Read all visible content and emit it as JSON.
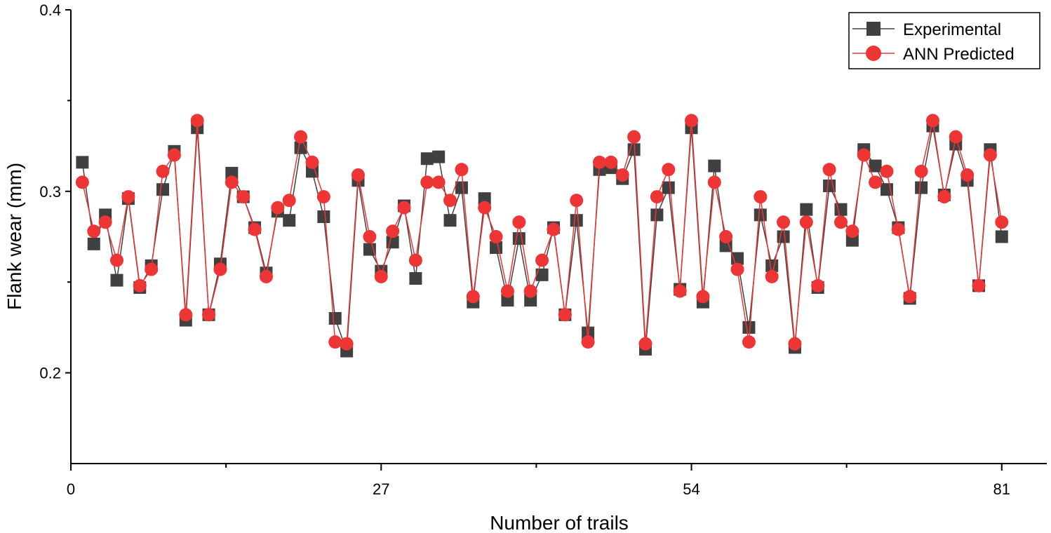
{
  "chart_data": {
    "type": "line",
    "xlabel": "Number of trails",
    "ylabel": "Flank wear (mm)",
    "xlim": [
      0,
      83
    ],
    "ylim": [
      0.15,
      0.4
    ],
    "x_ticks": [
      "0",
      "27",
      "54",
      "81"
    ],
    "y_ticks": [
      "0.2",
      "0.3",
      "0.4"
    ],
    "legend_position": "top-right",
    "x": [
      1,
      2,
      3,
      4,
      5,
      6,
      7,
      8,
      9,
      10,
      11,
      12,
      13,
      14,
      15,
      16,
      17,
      18,
      19,
      20,
      21,
      22,
      23,
      24,
      25,
      26,
      27,
      28,
      29,
      30,
      31,
      32,
      33,
      34,
      35,
      36,
      37,
      38,
      39,
      40,
      41,
      42,
      43,
      44,
      45,
      46,
      47,
      48,
      49,
      50,
      51,
      52,
      53,
      54,
      55,
      56,
      57,
      58,
      59,
      60,
      61,
      62,
      63,
      64,
      65,
      66,
      67,
      68,
      69,
      70,
      71,
      72,
      73,
      74,
      75,
      76,
      77,
      78,
      79,
      80,
      81
    ],
    "series": [
      {
        "name": "Experimental",
        "color": "#404040",
        "marker": "square",
        "values": [
          0.316,
          0.271,
          0.287,
          0.251,
          0.296,
          0.247,
          0.259,
          0.301,
          0.322,
          0.229,
          0.335,
          0.232,
          0.26,
          0.31,
          0.297,
          0.28,
          0.255,
          0.289,
          0.284,
          0.324,
          0.311,
          0.286,
          0.23,
          0.212,
          0.306,
          0.268,
          0.256,
          0.272,
          0.292,
          0.252,
          0.318,
          0.319,
          0.284,
          0.302,
          0.239,
          0.296,
          0.269,
          0.24,
          0.274,
          0.24,
          0.254,
          0.28,
          0.232,
          0.284,
          0.222,
          0.312,
          0.313,
          0.307,
          0.323,
          0.213,
          0.287,
          0.302,
          0.246,
          0.335,
          0.239,
          0.314,
          0.27,
          0.263,
          0.225,
          0.287,
          0.259,
          0.275,
          0.214,
          0.29,
          0.247,
          0.303,
          0.29,
          0.273,
          0.323,
          0.314,
          0.301,
          0.28,
          0.241,
          0.302,
          0.336,
          0.298,
          0.326,
          0.306,
          0.248,
          0.323,
          0.275
        ]
      },
      {
        "name": "ANN Predicted",
        "color": "#ee3535",
        "marker": "circle",
        "values": [
          0.305,
          0.278,
          0.283,
          0.262,
          0.297,
          0.248,
          0.257,
          0.311,
          0.32,
          0.232,
          0.339,
          0.232,
          0.257,
          0.305,
          0.297,
          0.279,
          0.253,
          0.291,
          0.295,
          0.33,
          0.316,
          0.297,
          0.217,
          0.216,
          0.309,
          0.275,
          0.253,
          0.278,
          0.291,
          0.262,
          0.305,
          0.305,
          0.295,
          0.312,
          0.242,
          0.291,
          0.275,
          0.245,
          0.283,
          0.245,
          0.262,
          0.279,
          0.232,
          0.295,
          0.217,
          0.316,
          0.316,
          0.309,
          0.33,
          0.216,
          0.297,
          0.312,
          0.245,
          0.339,
          0.242,
          0.305,
          0.275,
          0.257,
          0.217,
          0.297,
          0.253,
          0.283,
          0.216,
          0.283,
          0.248,
          0.312,
          0.283,
          0.278,
          0.32,
          0.305,
          0.311,
          0.279,
          0.242,
          0.311,
          0.339,
          0.297,
          0.33,
          0.309,
          0.248,
          0.32,
          0.283
        ]
      }
    ]
  }
}
